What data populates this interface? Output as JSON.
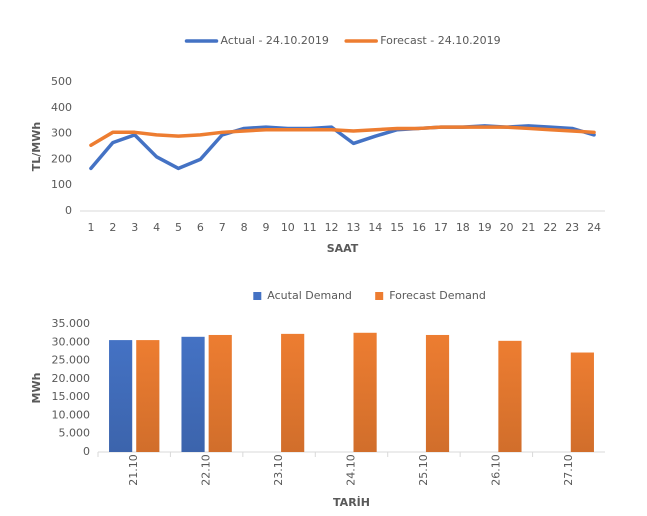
{
  "chart_data": [
    {
      "type": "line",
      "x_label": "SAAT",
      "y_label": "TL/MWh",
      "categories": [
        "1",
        "2",
        "3",
        "4",
        "5",
        "6",
        "7",
        "8",
        "9",
        "10",
        "11",
        "12",
        "13",
        "14",
        "15",
        "16",
        "17",
        "18",
        "19",
        "20",
        "21",
        "22",
        "23",
        "24"
      ],
      "series": [
        {
          "name": "Actual - 24.10.2019",
          "color": "#4472c4",
          "values": [
            165,
            265,
            295,
            210,
            165,
            200,
            295,
            320,
            325,
            320,
            320,
            325,
            262,
            290,
            315,
            320,
            325,
            325,
            330,
            325,
            330,
            325,
            320,
            295
          ]
        },
        {
          "name": "Forecast - 24.10.2019",
          "color": "#ed7d31",
          "values": [
            255,
            305,
            305,
            295,
            290,
            295,
            305,
            310,
            315,
            315,
            315,
            315,
            310,
            315,
            320,
            320,
            325,
            325,
            325,
            325,
            320,
            315,
            310,
            305
          ]
        }
      ],
      "ylim": [
        0,
        500
      ],
      "yticks": [
        0,
        100,
        200,
        300,
        400,
        500
      ],
      "grid": false,
      "legend": "top"
    },
    {
      "type": "bar",
      "x_label": "TARİH",
      "y_label": "MWh",
      "categories": [
        "21.10",
        "22.10",
        "23.10",
        "24.10",
        "25.10",
        "26.10",
        "27.10"
      ],
      "series": [
        {
          "name": "Acutal Demand",
          "color": "#4472c4",
          "values": [
            30600,
            31500,
            null,
            null,
            null,
            null,
            null
          ]
        },
        {
          "name": "Forecast Demand",
          "color": "#ed7d31",
          "values": [
            30600,
            32000,
            32300,
            32600,
            32000,
            30400,
            27200
          ]
        }
      ],
      "ylim": [
        0,
        35000
      ],
      "yticks": [
        0,
        {
          "value": 5000,
          "label": "5.000"
        },
        {
          "value": 10000,
          "label": "10.000"
        },
        {
          "value": 15000,
          "label": "15.000"
        },
        {
          "value": 20000,
          "label": "20.000"
        },
        {
          "value": 25000,
          "label": "25.000"
        },
        {
          "value": 30000,
          "label": "30.000"
        },
        {
          "value": 35000,
          "label": "35.000"
        }
      ],
      "grid": false,
      "legend": "top"
    }
  ]
}
